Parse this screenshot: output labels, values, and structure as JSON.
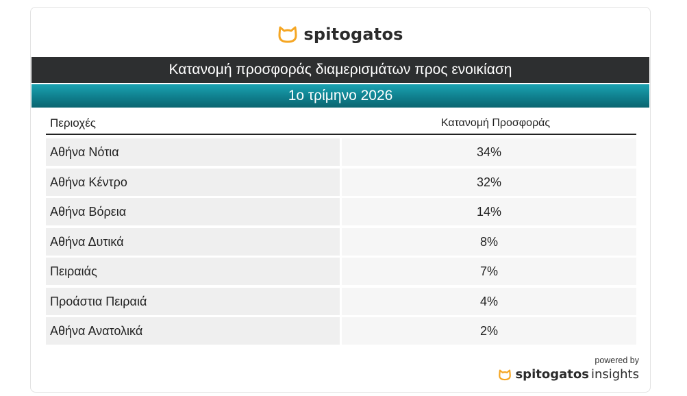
{
  "brand": {
    "logo_text": "spitogatos",
    "icon": "cat-head-icon",
    "accent_color": "#f5a623"
  },
  "chart_data": {
    "type": "table",
    "title": "Κατανομή προσφοράς διαμερισμάτων προς ενοικίαση",
    "subtitle": "1ο τρίμηνο 2026",
    "columns": [
      "Περιοχές",
      "Κατανομή Προσφοράς"
    ],
    "rows": [
      {
        "region": "Αθήνα Νότια",
        "share": "34%"
      },
      {
        "region": "Αθήνα Κέντρο",
        "share": "32%"
      },
      {
        "region": "Αθήνα Βόρεια",
        "share": "14%"
      },
      {
        "region": "Αθήνα Δυτικά",
        "share": "8%"
      },
      {
        "region": "Πειραιάς",
        "share": "7%"
      },
      {
        "region": "Προάστια Πειραιά",
        "share": "4%"
      },
      {
        "region": "Αθήνα Ανατολικά",
        "share": "2%"
      }
    ],
    "colors": {
      "title_band": "#2d2f30",
      "subtitle_band": "#1292a1"
    }
  },
  "footer": {
    "powered_by": "powered by",
    "brand": "spitogatos",
    "suffix": "insights"
  }
}
